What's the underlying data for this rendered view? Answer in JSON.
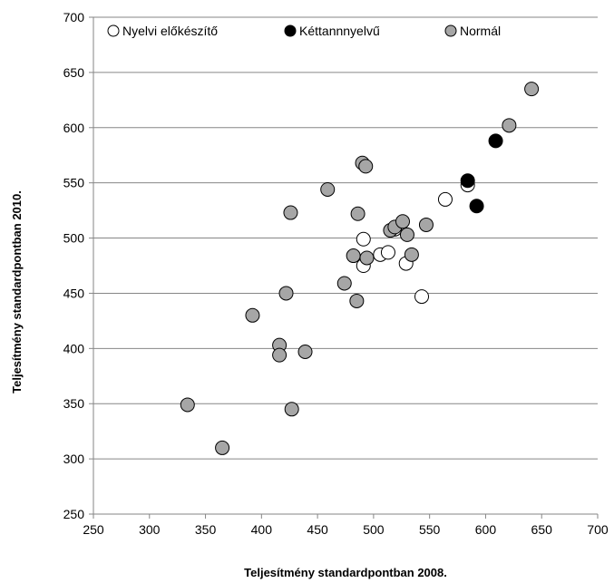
{
  "chart_data": {
    "type": "scatter",
    "title": "",
    "xlabel": "Teljesítmény standardpontban 2008.",
    "ylabel": "Teljesítmény standardpontban 2010.",
    "xlim": [
      250,
      700
    ],
    "ylim": [
      250,
      700
    ],
    "xticks": [
      250,
      300,
      350,
      400,
      450,
      500,
      550,
      600,
      650,
      700
    ],
    "yticks": [
      250,
      300,
      350,
      400,
      450,
      500,
      550,
      600,
      650,
      700
    ],
    "grid": "horizontal",
    "legend_position": "top",
    "series": [
      {
        "name": "Nyelvi előkészítő",
        "color": "#ffffff",
        "points": [
          [
            491,
            499
          ],
          [
            491,
            475
          ],
          [
            506,
            485
          ],
          [
            513,
            487
          ],
          [
            519,
            508
          ],
          [
            529,
            477
          ],
          [
            543,
            447
          ],
          [
            564,
            535
          ],
          [
            584,
            548
          ]
        ]
      },
      {
        "name": "Kéttannnyelvű",
        "color": "#000000",
        "points": [
          [
            584,
            552
          ],
          [
            592,
            529
          ],
          [
            609,
            588
          ]
        ]
      },
      {
        "name": "Normál",
        "color": "#a6a6a6",
        "points": [
          [
            334,
            349
          ],
          [
            365,
            310
          ],
          [
            392,
            430
          ],
          [
            416,
            403
          ],
          [
            416,
            394
          ],
          [
            422,
            450
          ],
          [
            426,
            523
          ],
          [
            427,
            345
          ],
          [
            439,
            397
          ],
          [
            459,
            544
          ],
          [
            474,
            459
          ],
          [
            482,
            484
          ],
          [
            485,
            443
          ],
          [
            486,
            522
          ],
          [
            490,
            568
          ],
          [
            493,
            565
          ],
          [
            494,
            482
          ],
          [
            515,
            507
          ],
          [
            519,
            510
          ],
          [
            526,
            515
          ],
          [
            530,
            503
          ],
          [
            534,
            485
          ],
          [
            547,
            512
          ],
          [
            621,
            602
          ],
          [
            641,
            635
          ]
        ]
      }
    ]
  }
}
